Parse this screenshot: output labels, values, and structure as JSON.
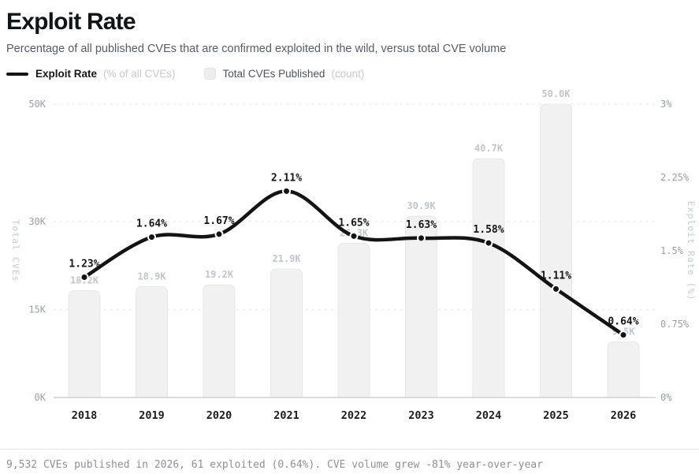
{
  "page": {
    "title": "Exploit Rate",
    "subtitle": "Percentage of all published CVEs that are confirmed exploited in the wild, versus total CVE volume",
    "footer": "9,532 CVEs published in 2026, 61 exploited (0.64%). CVE volume grew -81% year-over-year"
  },
  "legend": {
    "items": [
      {
        "swatch": "line-swatch",
        "label": "Exploit Rate",
        "detail": "(% of all CVEs)"
      },
      {
        "swatch": "bar-swatch",
        "label": "Total CVEs Published",
        "detail": "(count)"
      }
    ]
  },
  "colors": {
    "line": "#141414",
    "dot_fill": "#141414",
    "dot_ring": "#ffffff",
    "bar_fill": "#f1f1f1",
    "bar_border": "#e7e7e7",
    "grid": "#e9e9e9",
    "baseline": "#cfcfcf",
    "tick_label": "#99a0a6",
    "year_label": "#1c1c1c",
    "bar_value_label": "#c2c6ca",
    "rate_label": "#161616",
    "axis_title": "#c8ccd0"
  },
  "chart_data": {
    "type": "bar+line",
    "title": "Exploit Rate",
    "categories": [
      "2018",
      "2019",
      "2020",
      "2021",
      "2022",
      "2023",
      "2024",
      "2025",
      "2026"
    ],
    "series": [
      {
        "name": "Total CVEs Published",
        "type": "bar",
        "axis": "left",
        "unit": "K",
        "values_k": [
          18.2,
          18.9,
          19.2,
          21.9,
          26.3,
          30.9,
          40.7,
          50.0,
          9.5
        ],
        "labels": [
          "18.2K",
          "18.9K",
          "19.2K",
          "21.9K",
          "26.3K",
          "30.9K",
          "40.7K",
          "50.0K",
          "9.5K"
        ]
      },
      {
        "name": "Exploit Rate",
        "type": "line",
        "axis": "right",
        "unit": "%",
        "values_pct": [
          1.23,
          1.64,
          1.67,
          2.11,
          1.65,
          1.63,
          1.58,
          1.11,
          0.64
        ],
        "labels": [
          "1.23%",
          "1.64%",
          "1.67%",
          "2.11%",
          "1.65%",
          "1.63%",
          "1.58%",
          "1.11%",
          "0.64%"
        ]
      }
    ],
    "left_axis": {
      "title": "Total CVEs",
      "ticks": [
        {
          "label": "0K",
          "value_k": 0
        },
        {
          "label": "15K",
          "value_k": 15
        },
        {
          "label": "30K",
          "value_k": 30
        },
        {
          "label": "50K",
          "value_k": 50
        }
      ],
      "range_k": [
        0,
        50
      ]
    },
    "right_axis": {
      "title": "Exploit Rate (%)",
      "ticks": [
        {
          "label": "0%",
          "value": 0
        },
        {
          "label": "0.75%",
          "value": 0.75
        },
        {
          "label": "1.5%",
          "value": 1.5
        },
        {
          "label": "2.25%",
          "value": 2.25
        },
        {
          "label": "3%",
          "value": 3
        }
      ],
      "range_pct": [
        0,
        3
      ]
    },
    "grid": {
      "horizontal": true,
      "style": "dashed",
      "follows": "left_axis"
    },
    "legend_position": "top-left"
  }
}
